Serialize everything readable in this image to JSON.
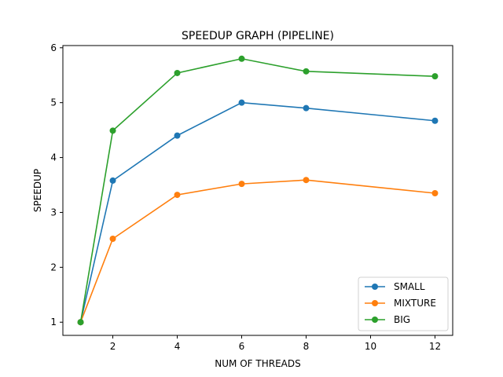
{
  "chart_data": {
    "type": "line",
    "title": "SPEEDUP GRAPH (PIPELINE)",
    "xlabel": "NUM OF THREADS",
    "ylabel": "SPEEDUP",
    "x": [
      1,
      2,
      4,
      6,
      8,
      12
    ],
    "xlim": [
      0.45,
      12.55
    ],
    "ylim": [
      0.76,
      6.04
    ],
    "xticks": [
      2,
      4,
      6,
      8,
      10,
      12
    ],
    "yticks": [
      1,
      2,
      3,
      4,
      5,
      6
    ],
    "grid": false,
    "legend_position": "lower-right",
    "series": [
      {
        "name": "SMALL",
        "color": "#1f77b4",
        "values": [
          1.0,
          3.58,
          4.4,
          5.0,
          4.9,
          4.67
        ]
      },
      {
        "name": "MIXTURE",
        "color": "#ff7f0e",
        "values": [
          1.0,
          2.52,
          3.32,
          3.52,
          3.59,
          3.35
        ]
      },
      {
        "name": "BIG",
        "color": "#2ca02c",
        "values": [
          1.0,
          4.49,
          5.54,
          5.8,
          5.57,
          5.48
        ]
      }
    ]
  }
}
